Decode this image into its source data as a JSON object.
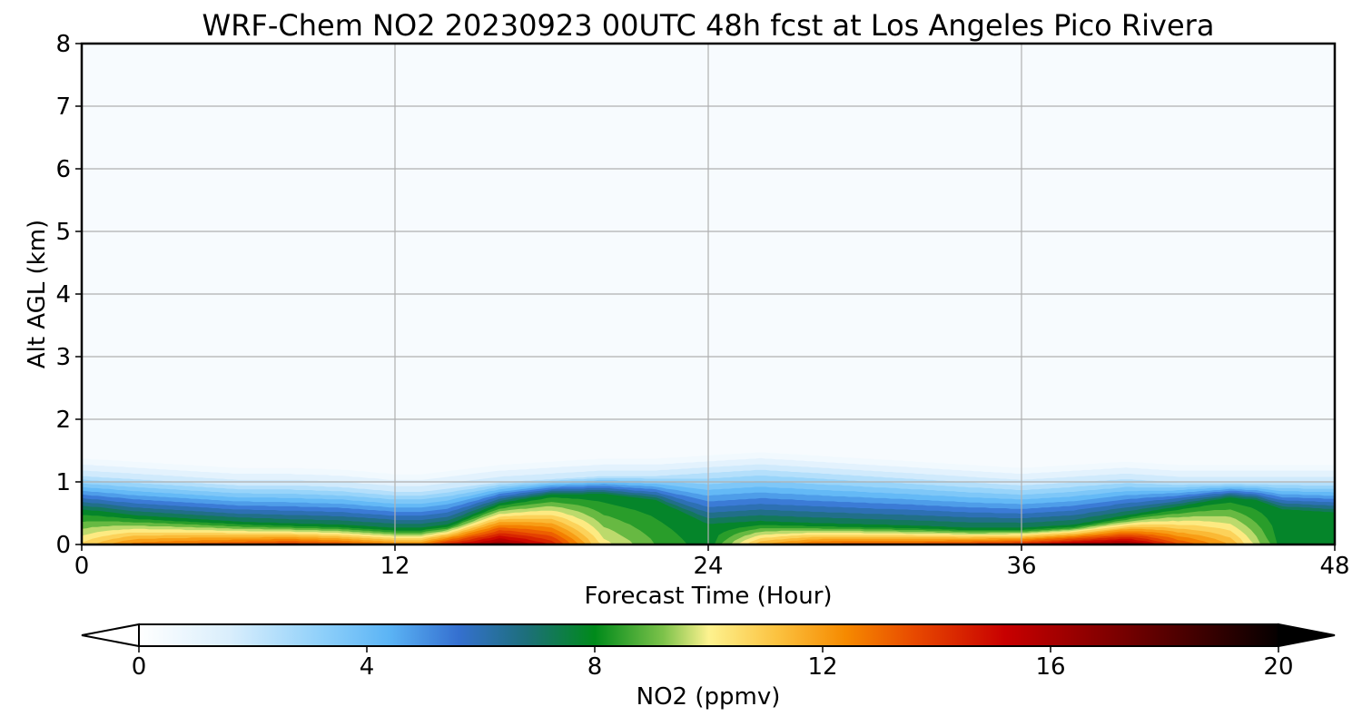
{
  "chart_data": {
    "type": "heatmap",
    "title": "WRF-Chem NO2  20230923 00UTC 48h fcst at Los Angeles Pico Rivera",
    "xlabel": "Forecast Time (Hour)",
    "ylabel": "Alt AGL (km)",
    "xlim": [
      0,
      48
    ],
    "ylim": [
      0,
      8
    ],
    "x_ticks": [
      "0",
      "12",
      "24",
      "36",
      "48"
    ],
    "y_ticks": [
      "0",
      "1",
      "2",
      "3",
      "4",
      "5",
      "6",
      "7",
      "8"
    ],
    "grid": true,
    "colorbar": {
      "label": "NO2  (ppmv)",
      "range": [
        0,
        20
      ],
      "ticks": [
        "0",
        "4",
        "8",
        "12",
        "16",
        "20"
      ],
      "extend": "both",
      "orientation": "horizontal",
      "placement": "bottom"
    },
    "profile_samples": {
      "hours": [
        0,
        2,
        4,
        6,
        8,
        10,
        12,
        13,
        14,
        16,
        18,
        20,
        22,
        24,
        26,
        28,
        30,
        32,
        34,
        36,
        38,
        40,
        42,
        44,
        45,
        46,
        48
      ],
      "mixed_layer_top_km": [
        1.1,
        1.05,
        1.0,
        0.95,
        0.95,
        0.92,
        0.85,
        0.85,
        0.9,
        1.0,
        1.05,
        1.1,
        1.1,
        1.15,
        1.2,
        1.15,
        1.1,
        1.05,
        1.0,
        0.95,
        1.0,
        1.05,
        1.0,
        1.0,
        1.0,
        1.0,
        1.0
      ],
      "green_layer_top_km": [
        0.55,
        0.45,
        0.4,
        0.35,
        0.32,
        0.3,
        0.25,
        0.25,
        0.3,
        0.65,
        0.8,
        0.8,
        0.7,
        0.3,
        0.35,
        0.32,
        0.3,
        0.28,
        0.25,
        0.25,
        0.3,
        0.45,
        0.6,
        0.75,
        0.7,
        0.55,
        0.5
      ],
      "surface_max_ppmv": [
        11,
        13,
        13.5,
        14,
        14.5,
        14,
        13,
        13,
        15,
        17,
        15,
        10.5,
        9,
        8,
        12,
        13.5,
        14,
        14,
        14.5,
        15,
        16.5,
        17,
        14,
        12,
        10,
        8,
        7
      ]
    }
  }
}
